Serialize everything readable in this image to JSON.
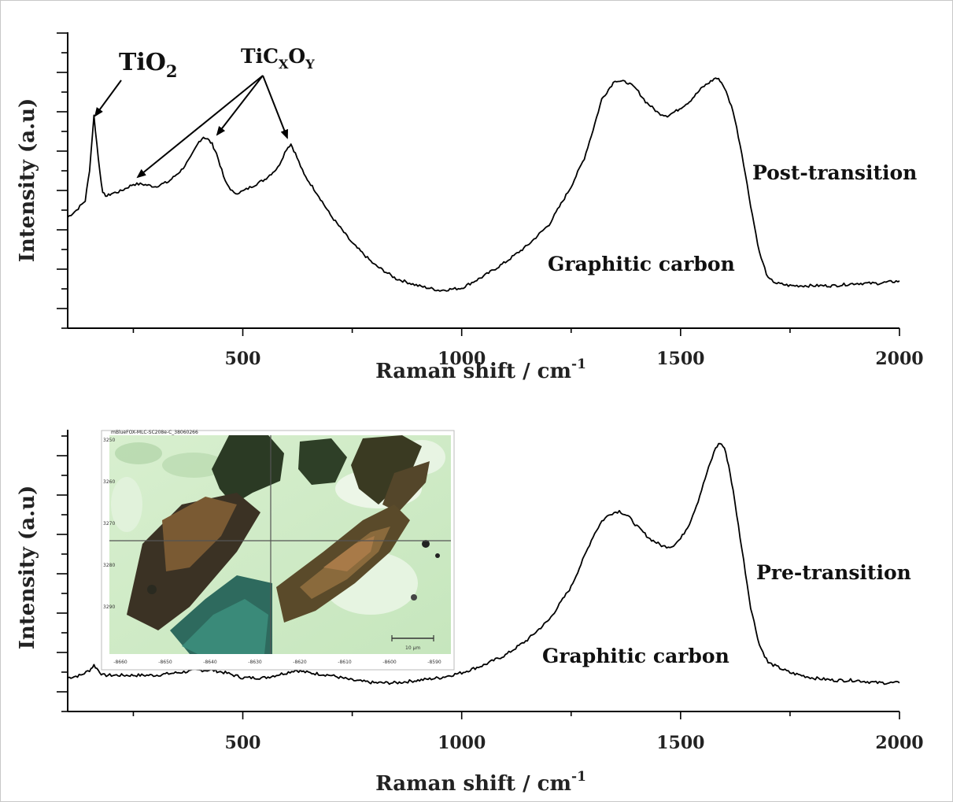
{
  "chart_data": [
    {
      "type": "line",
      "xlabel": "Raman shift / cm",
      "xlabel_sup": "-1",
      "ylabel": "Intensity (a.u)",
      "xlim": [
        100,
        2000
      ],
      "ylim": [
        0,
        1
      ],
      "x_ticks": [
        500,
        1000,
        1500,
        2000
      ],
      "grid": false,
      "series": [
        {
          "x": [
            100,
            120,
            140,
            150,
            160,
            170,
            180,
            190,
            200,
            220,
            250,
            270,
            300,
            330,
            360,
            380,
            400,
            410,
            420,
            430,
            440,
            460,
            480,
            500,
            520,
            550,
            580,
            600,
            610,
            620,
            640,
            670,
            700,
            750,
            800,
            850,
            900,
            950,
            1000,
            1050,
            1100,
            1150,
            1200,
            1250,
            1280,
            1300,
            1320,
            1350,
            1380,
            1400,
            1420,
            1450,
            1470,
            1490,
            1520,
            1550,
            1580,
            1590,
            1600,
            1620,
            1640,
            1660,
            1680,
            1700,
            1720,
            1750,
            1800,
            1850,
            1900,
            1950,
            2000
          ],
          "y": [
            0.35,
            0.38,
            0.42,
            0.55,
            0.78,
            0.6,
            0.45,
            0.44,
            0.45,
            0.46,
            0.49,
            0.49,
            0.48,
            0.5,
            0.55,
            0.6,
            0.67,
            0.69,
            0.68,
            0.66,
            0.62,
            0.5,
            0.45,
            0.46,
            0.48,
            0.51,
            0.56,
            0.64,
            0.66,
            0.62,
            0.53,
            0.45,
            0.36,
            0.24,
            0.15,
            0.09,
            0.06,
            0.04,
            0.05,
            0.1,
            0.16,
            0.23,
            0.32,
            0.48,
            0.6,
            0.72,
            0.85,
            0.93,
            0.92,
            0.89,
            0.84,
            0.79,
            0.78,
            0.8,
            0.84,
            0.9,
            0.94,
            0.93,
            0.9,
            0.8,
            0.62,
            0.4,
            0.2,
            0.09,
            0.07,
            0.06,
            0.06,
            0.06,
            0.07,
            0.07,
            0.08
          ]
        }
      ],
      "annotations": [
        {
          "text": "TiO",
          "sub": "2"
        },
        {
          "text": "TiC",
          "sub1": "X",
          "mid": "O",
          "sub2": "Y"
        },
        {
          "text": "Post-transition"
        },
        {
          "text": "Graphitic carbon"
        }
      ]
    },
    {
      "type": "line",
      "xlabel": "Raman shift / cm",
      "xlabel_sup": "-1",
      "ylabel": "Intensity (a.u)",
      "xlim": [
        100,
        2000
      ],
      "ylim": [
        0,
        1
      ],
      "x_ticks": [
        500,
        1000,
        1500,
        2000
      ],
      "grid": false,
      "series": [
        {
          "x": [
            100,
            130,
            150,
            160,
            170,
            180,
            200,
            250,
            300,
            350,
            400,
            430,
            460,
            500,
            550,
            600,
            620,
            650,
            700,
            750,
            800,
            850,
            900,
            950,
            1000,
            1050,
            1100,
            1150,
            1200,
            1250,
            1280,
            1300,
            1320,
            1340,
            1360,
            1380,
            1400,
            1430,
            1460,
            1480,
            1500,
            1520,
            1540,
            1560,
            1580,
            1590,
            1600,
            1610,
            1620,
            1640,
            1660,
            1680,
            1700,
            1750,
            1800,
            1850,
            1900,
            1950,
            2000
          ],
          "y": [
            0.04,
            0.05,
            0.07,
            0.09,
            0.07,
            0.05,
            0.05,
            0.05,
            0.05,
            0.06,
            0.07,
            0.07,
            0.06,
            0.04,
            0.04,
            0.06,
            0.07,
            0.06,
            0.05,
            0.03,
            0.02,
            0.02,
            0.03,
            0.04,
            0.06,
            0.09,
            0.13,
            0.19,
            0.27,
            0.4,
            0.52,
            0.6,
            0.66,
            0.69,
            0.7,
            0.68,
            0.64,
            0.59,
            0.56,
            0.56,
            0.59,
            0.65,
            0.74,
            0.85,
            0.95,
            0.97,
            0.95,
            0.88,
            0.78,
            0.55,
            0.32,
            0.17,
            0.1,
            0.06,
            0.04,
            0.03,
            0.03,
            0.02,
            0.02
          ]
        }
      ],
      "annotations": [
        {
          "text": "Pre-transition"
        },
        {
          "text": "Graphitic carbon"
        }
      ],
      "inset": {
        "title": "mBlueFOX-MLC-SC208e-C_38060266",
        "y_ticks": [
          "3250",
          "3260",
          "3270",
          "3280",
          "3290"
        ],
        "x_ticks": [
          "-8660",
          "-8650",
          "-8640",
          "-8630",
          "-8620",
          "-8610",
          "-8600",
          "-8590"
        ],
        "scale_bar_label": "10 µm"
      }
    }
  ]
}
